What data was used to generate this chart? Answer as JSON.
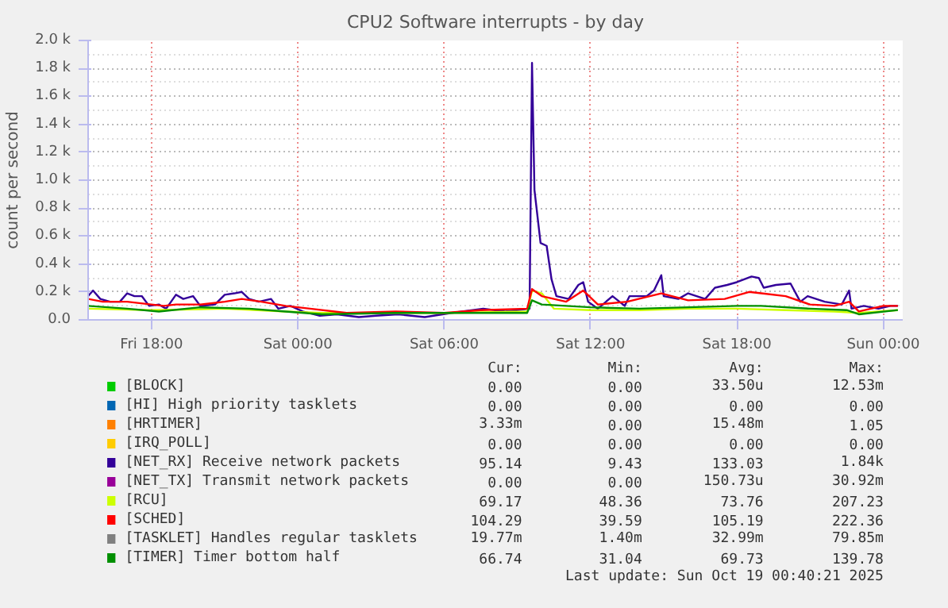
{
  "chart_data": {
    "type": "line",
    "title": "CPU2 Software interrupts - by day",
    "ylabel": "count per second",
    "xlim": [
      "2025-10-17T15:24",
      "2025-10-19T00:48"
    ],
    "ylim": [
      0,
      2000
    ],
    "xticks": [
      {
        "value": "2025-10-17T18:00",
        "label": "Fri 18:00"
      },
      {
        "value": "2025-10-18T00:00",
        "label": "Sat 00:00"
      },
      {
        "value": "2025-10-18T06:00",
        "label": "Sat 06:00"
      },
      {
        "value": "2025-10-18T12:00",
        "label": "Sat 12:00"
      },
      {
        "value": "2025-10-18T18:00",
        "label": "Sat 18:00"
      },
      {
        "value": "2025-10-19T00:00",
        "label": "Sun 00:00"
      }
    ],
    "yticks": [
      {
        "value": 0,
        "label": "0.0"
      },
      {
        "value": 200,
        "label": "0.2 k"
      },
      {
        "value": 400,
        "label": "0.4 k"
      },
      {
        "value": 600,
        "label": "0.6 k"
      },
      {
        "value": 800,
        "label": "0.8 k"
      },
      {
        "value": 1000,
        "label": "1.0 k"
      },
      {
        "value": 1200,
        "label": "1.2 k"
      },
      {
        "value": 1400,
        "label": "1.4 k"
      },
      {
        "value": 1600,
        "label": "1.6 k"
      },
      {
        "value": 1800,
        "label": "1.8 k"
      },
      {
        "value": 2000,
        "label": "2.0 k"
      }
    ],
    "grid": true,
    "legend": "bottom",
    "series": [
      {
        "name": "[BLOCK]",
        "color": "#00cc00"
      },
      {
        "name": "[HI] High priority tasklets",
        "color": "#0066b3"
      },
      {
        "name": "[HRTIMER]",
        "color": "#ff8000"
      },
      {
        "name": "[IRQ_POLL]",
        "color": "#ffcc00"
      },
      {
        "name": "[NET_RX] Receive network packets",
        "color": "#330099",
        "x": [
          "2025-10-17T15:24",
          "2025-10-17T15:36",
          "2025-10-17T15:54",
          "2025-10-17T16:18",
          "2025-10-17T16:42",
          "2025-10-17T17:00",
          "2025-10-17T17:18",
          "2025-10-17T17:36",
          "2025-10-17T17:54",
          "2025-10-17T18:18",
          "2025-10-17T18:36",
          "2025-10-17T19:00",
          "2025-10-17T19:18",
          "2025-10-17T19:42",
          "2025-10-17T20:00",
          "2025-10-17T20:36",
          "2025-10-17T21:00",
          "2025-10-17T21:24",
          "2025-10-17T21:42",
          "2025-10-17T22:00",
          "2025-10-17T22:24",
          "2025-10-17T22:54",
          "2025-10-17T23:12",
          "2025-10-17T23:42",
          "2025-10-18T00:12",
          "2025-10-18T00:54",
          "2025-10-18T01:36",
          "2025-10-18T02:30",
          "2025-10-18T03:12",
          "2025-10-18T04:06",
          "2025-10-18T05:12",
          "2025-10-18T06:18",
          "2025-10-18T07:36",
          "2025-10-18T08:30",
          "2025-10-18T09:30",
          "2025-10-18T09:36",
          "2025-10-18T09:42",
          "2025-10-18T09:57",
          "2025-10-18T10:12",
          "2025-10-18T10:24",
          "2025-10-18T10:36",
          "2025-10-18T11:06",
          "2025-10-18T11:30",
          "2025-10-18T11:42",
          "2025-10-18T11:54",
          "2025-10-18T12:18",
          "2025-10-18T12:54",
          "2025-10-18T13:24",
          "2025-10-18T13:36",
          "2025-10-18T14:18",
          "2025-10-18T14:36",
          "2025-10-18T14:54",
          "2025-10-18T15:00",
          "2025-10-18T15:36",
          "2025-10-18T16:00",
          "2025-10-18T16:42",
          "2025-10-18T17:06",
          "2025-10-18T17:36",
          "2025-10-18T18:00",
          "2025-10-18T18:36",
          "2025-10-18T18:54",
          "2025-10-18T19:06",
          "2025-10-18T19:36",
          "2025-10-18T20:12",
          "2025-10-18T20:36",
          "2025-10-18T20:54",
          "2025-10-18T21:36",
          "2025-10-18T22:18",
          "2025-10-18T22:36",
          "2025-10-18T22:42",
          "2025-10-18T23:12",
          "2025-10-18T23:48",
          "2025-10-19T00:18",
          "2025-10-19T00:36"
        ],
        "values": [
          170,
          210,
          150,
          130,
          130,
          190,
          170,
          170,
          100,
          110,
          80,
          180,
          150,
          170,
          100,
          110,
          180,
          190,
          200,
          150,
          130,
          150,
          80,
          100,
          60,
          30,
          40,
          20,
          30,
          40,
          20,
          50,
          80,
          60,
          80,
          1840,
          930,
          550,
          530,
          290,
          170,
          150,
          250,
          270,
          130,
          80,
          170,
          100,
          170,
          170,
          210,
          320,
          170,
          150,
          190,
          150,
          230,
          250,
          270,
          310,
          300,
          230,
          250,
          260,
          130,
          170,
          130,
          110,
          210,
          80,
          100,
          80,
          100,
          100
        ]
      },
      {
        "name": "[NET_TX] Transmit network packets",
        "color": "#990099"
      },
      {
        "name": "[RCU]",
        "color": "#ccff00",
        "x": [
          "2025-10-17T15:24",
          "2025-10-17T18:00",
          "2025-10-17T21:00",
          "2025-10-17T23:30",
          "2025-10-18T01:00",
          "2025-10-18T04:00",
          "2025-10-18T06:00",
          "2025-10-18T09:24",
          "2025-10-18T09:36",
          "2025-10-18T10:00",
          "2025-10-18T10:30",
          "2025-10-18T12:00",
          "2025-10-18T14:00",
          "2025-10-18T16:00",
          "2025-10-18T18:00",
          "2025-10-18T20:00",
          "2025-10-18T22:00",
          "2025-10-18T23:00",
          "2025-10-19T00:36"
        ],
        "values": [
          80,
          70,
          80,
          60,
          50,
          50,
          50,
          60,
          210,
          190,
          80,
          70,
          70,
          80,
          80,
          70,
          60,
          50,
          70
        ]
      },
      {
        "name": "[SCHED]",
        "color": "#ff0000",
        "x": [
          "2025-10-17T15:24",
          "2025-10-17T16:00",
          "2025-10-17T17:00",
          "2025-10-17T18:00",
          "2025-10-17T18:30",
          "2025-10-17T19:00",
          "2025-10-17T20:00",
          "2025-10-17T21:00",
          "2025-10-17T21:42",
          "2025-10-17T22:30",
          "2025-10-17T23:30",
          "2025-10-18T00:30",
          "2025-10-18T02:00",
          "2025-10-18T04:00",
          "2025-10-18T06:00",
          "2025-10-18T07:30",
          "2025-10-18T09:24",
          "2025-10-18T09:36",
          "2025-10-18T10:00",
          "2025-10-18T11:00",
          "2025-10-18T11:42",
          "2025-10-18T12:18",
          "2025-10-18T13:30",
          "2025-10-18T14:54",
          "2025-10-18T16:00",
          "2025-10-18T17:30",
          "2025-10-18T18:30",
          "2025-10-18T19:00",
          "2025-10-18T20:00",
          "2025-10-18T21:00",
          "2025-10-18T22:00",
          "2025-10-18T22:36",
          "2025-10-18T23:00",
          "2025-10-19T00:00",
          "2025-10-19T00:36"
        ],
        "values": [
          150,
          130,
          130,
          110,
          100,
          110,
          110,
          130,
          150,
          130,
          100,
          80,
          50,
          60,
          50,
          70,
          80,
          220,
          170,
          130,
          210,
          110,
          130,
          190,
          140,
          150,
          200,
          190,
          170,
          110,
          100,
          130,
          60,
          100,
          100
        ]
      },
      {
        "name": "[TASKLET] Handles regular tasklets",
        "color": "#808080"
      },
      {
        "name": "[TIMER] Timer bottom half",
        "color": "#008f00",
        "x": [
          "2025-10-17T15:24",
          "2025-10-17T17:00",
          "2025-10-17T18:18",
          "2025-10-17T20:00",
          "2025-10-17T22:00",
          "2025-10-17T23:30",
          "2025-10-18T01:00",
          "2025-10-18T04:00",
          "2025-10-18T06:30",
          "2025-10-18T09:24",
          "2025-10-18T09:36",
          "2025-10-18T10:00",
          "2025-10-18T12:00",
          "2025-10-18T14:00",
          "2025-10-18T16:00",
          "2025-10-18T18:00",
          "2025-10-18T19:00",
          "2025-10-18T21:00",
          "2025-10-18T22:30",
          "2025-10-18T23:00",
          "2025-10-19T00:36"
        ],
        "values": [
          100,
          80,
          60,
          90,
          80,
          60,
          40,
          50,
          50,
          50,
          140,
          110,
          90,
          80,
          90,
          100,
          100,
          80,
          70,
          40,
          70
        ]
      }
    ],
    "annotations": [
      "Cur:",
      "Min:",
      "Avg:",
      "Max:",
      "0.00",
      "0.00",
      "33.50u",
      "12.53m",
      "0.00",
      "0.00",
      "0.00",
      "0.00",
      "3.33m",
      "0.00",
      "15.48m",
      "1.05",
      "0.00",
      "0.00",
      "0.00",
      "0.00",
      "95.14",
      "9.43",
      "133.03",
      "1.84k",
      "0.00",
      "0.00",
      "150.73u",
      "30.92m",
      "69.17",
      "48.36",
      "73.76",
      "207.23",
      "104.29",
      "39.59",
      "105.19",
      "222.36",
      "19.77m",
      "1.40m",
      "32.99m",
      "79.85m",
      "66.74",
      "31.04",
      "69.73",
      "139.78",
      "Last update: Sun Oct 19 00:40:21 2025"
    ]
  }
}
